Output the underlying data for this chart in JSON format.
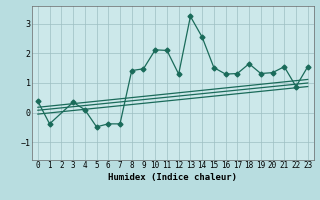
{
  "xlabel": "Humidex (Indice chaleur)",
  "ylabel": "",
  "xlim": [
    -0.5,
    23.5
  ],
  "ylim": [
    -1.6,
    3.6
  ],
  "yticks": [
    -1,
    0,
    1,
    2,
    3
  ],
  "xticks": [
    0,
    1,
    2,
    3,
    4,
    5,
    6,
    7,
    8,
    9,
    10,
    11,
    12,
    13,
    14,
    15,
    16,
    17,
    18,
    19,
    20,
    21,
    22,
    23
  ],
  "bg_color": "#b8dde0",
  "plot_bg_color": "#cce8ea",
  "line_color": "#1a6b5a",
  "grid_color": "#9dbfc2",
  "series1_x": [
    0,
    1,
    3,
    4,
    5,
    6,
    7,
    8,
    9,
    10,
    11,
    12,
    13,
    14,
    15,
    16,
    17,
    18,
    19,
    20,
    21,
    22,
    23
  ],
  "series1_y": [
    0.38,
    -0.38,
    0.35,
    0.1,
    -0.48,
    -0.38,
    -0.38,
    1.42,
    1.48,
    2.12,
    2.1,
    1.3,
    3.25,
    2.55,
    1.52,
    1.3,
    1.32,
    1.65,
    1.32,
    1.35,
    1.55,
    0.88,
    1.55
  ],
  "series2_x": [
    0,
    23
  ],
  "series2_y": [
    0.18,
    1.12
  ],
  "series3_x": [
    0,
    23
  ],
  "series3_y": [
    0.08,
    1.0
  ],
  "series4_x": [
    0,
    23
  ],
  "series4_y": [
    -0.05,
    0.88
  ],
  "marker": "D",
  "markersize": 2.5,
  "linewidth": 0.9
}
